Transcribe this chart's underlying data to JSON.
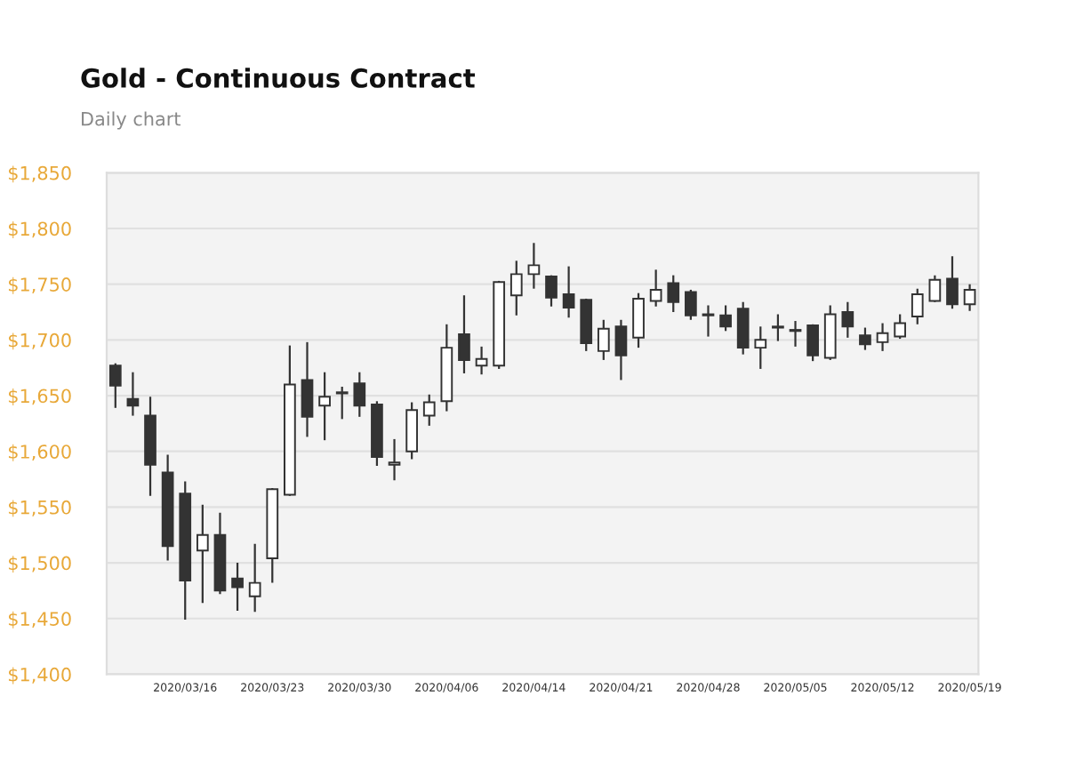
{
  "chart_data": {
    "type": "candlestick",
    "title": "Gold - Continuous Contract",
    "subtitle": "Daily chart",
    "categories": [
      null,
      null,
      null,
      null,
      "2020/03/16",
      null,
      null,
      null,
      null,
      "2020/03/23",
      null,
      null,
      null,
      null,
      "2020/03/30",
      null,
      null,
      null,
      null,
      "2020/04/06",
      null,
      null,
      null,
      null,
      "2020/04/14",
      null,
      null,
      null,
      null,
      "2020/04/21",
      null,
      null,
      null,
      null,
      "2020/04/28",
      null,
      null,
      null,
      null,
      "2020/05/05",
      null,
      null,
      null,
      null,
      "2020/05/12",
      null,
      null,
      null,
      null,
      "2020/05/19"
    ],
    "ohlc": [
      [
        1677,
        1679,
        1639,
        1659
      ],
      [
        1647,
        1671,
        1632,
        1641
      ],
      [
        1632,
        1649,
        1560,
        1588
      ],
      [
        1581,
        1597,
        1502,
        1515
      ],
      [
        1562,
        1573,
        1449,
        1484
      ],
      [
        1511,
        1552,
        1464,
        1525
      ],
      [
        1525,
        1545,
        1472,
        1475
      ],
      [
        1486,
        1500,
        1457,
        1478
      ],
      [
        1470,
        1517,
        1456,
        1482
      ],
      [
        1504,
        1567,
        1482,
        1566
      ],
      [
        1561,
        1695,
        1560,
        1660
      ],
      [
        1664,
        1698,
        1613,
        1631
      ],
      [
        1641,
        1671,
        1610,
        1649
      ],
      [
        1652,
        1658,
        1629,
        1653
      ],
      [
        1661,
        1671,
        1631,
        1641
      ],
      [
        1642,
        1645,
        1587,
        1595
      ],
      [
        1588,
        1611,
        1574,
        1590
      ],
      [
        1600,
        1644,
        1593,
        1637
      ],
      [
        1632,
        1651,
        1623,
        1644
      ],
      [
        1645,
        1714,
        1636,
        1693
      ],
      [
        1705,
        1740,
        1670,
        1682
      ],
      [
        1677,
        1694,
        1669,
        1683
      ],
      [
        1677,
        1753,
        1674,
        1752
      ],
      [
        1740,
        1771,
        1722,
        1759
      ],
      [
        1759,
        1787,
        1746,
        1767
      ],
      [
        1757,
        1758,
        1730,
        1738
      ],
      [
        1741,
        1766,
        1720,
        1729
      ],
      [
        1736,
        1737,
        1690,
        1697
      ],
      [
        1690,
        1718,
        1682,
        1710
      ],
      [
        1712,
        1718,
        1664,
        1686
      ],
      [
        1702,
        1742,
        1693,
        1737
      ],
      [
        1735,
        1763,
        1730,
        1745
      ],
      [
        1751,
        1758,
        1725,
        1734
      ],
      [
        1743,
        1745,
        1718,
        1722
      ],
      [
        1722,
        1731,
        1703,
        1723
      ],
      [
        1722,
        1731,
        1708,
        1712
      ],
      [
        1728,
        1734,
        1687,
        1693
      ],
      [
        1693,
        1712,
        1674,
        1700
      ],
      [
        1711,
        1723,
        1699,
        1712
      ],
      [
        1709,
        1717,
        1694,
        1708
      ],
      [
        1713,
        1714,
        1681,
        1686
      ],
      [
        1684,
        1731,
        1682,
        1723
      ],
      [
        1725,
        1734,
        1702,
        1712
      ],
      [
        1704,
        1711,
        1691,
        1696
      ],
      [
        1698,
        1715,
        1690,
        1706
      ],
      [
        1703,
        1723,
        1701,
        1715
      ],
      [
        1721,
        1746,
        1714,
        1741
      ],
      [
        1735,
        1758,
        1734,
        1754
      ],
      [
        1755,
        1775,
        1728,
        1732
      ],
      [
        1732,
        1750,
        1726,
        1745
      ]
    ],
    "color": "#333333",
    "ylim": [
      1400,
      1850
    ],
    "yticks": [
      {
        "value": 1400,
        "label": "$1,400"
      },
      {
        "value": 1450,
        "label": "$1,450"
      },
      {
        "value": 1500,
        "label": "$1,500"
      },
      {
        "value": 1550,
        "label": "$1,550"
      },
      {
        "value": 1600,
        "label": "$1,600"
      },
      {
        "value": 1650,
        "label": "$1,650"
      },
      {
        "value": 1700,
        "label": "$1,700"
      },
      {
        "value": 1750,
        "label": "$1,750"
      },
      {
        "value": 1800,
        "label": "$1,800"
      },
      {
        "value": 1850,
        "label": "$1,850"
      }
    ],
    "grid": "y"
  }
}
